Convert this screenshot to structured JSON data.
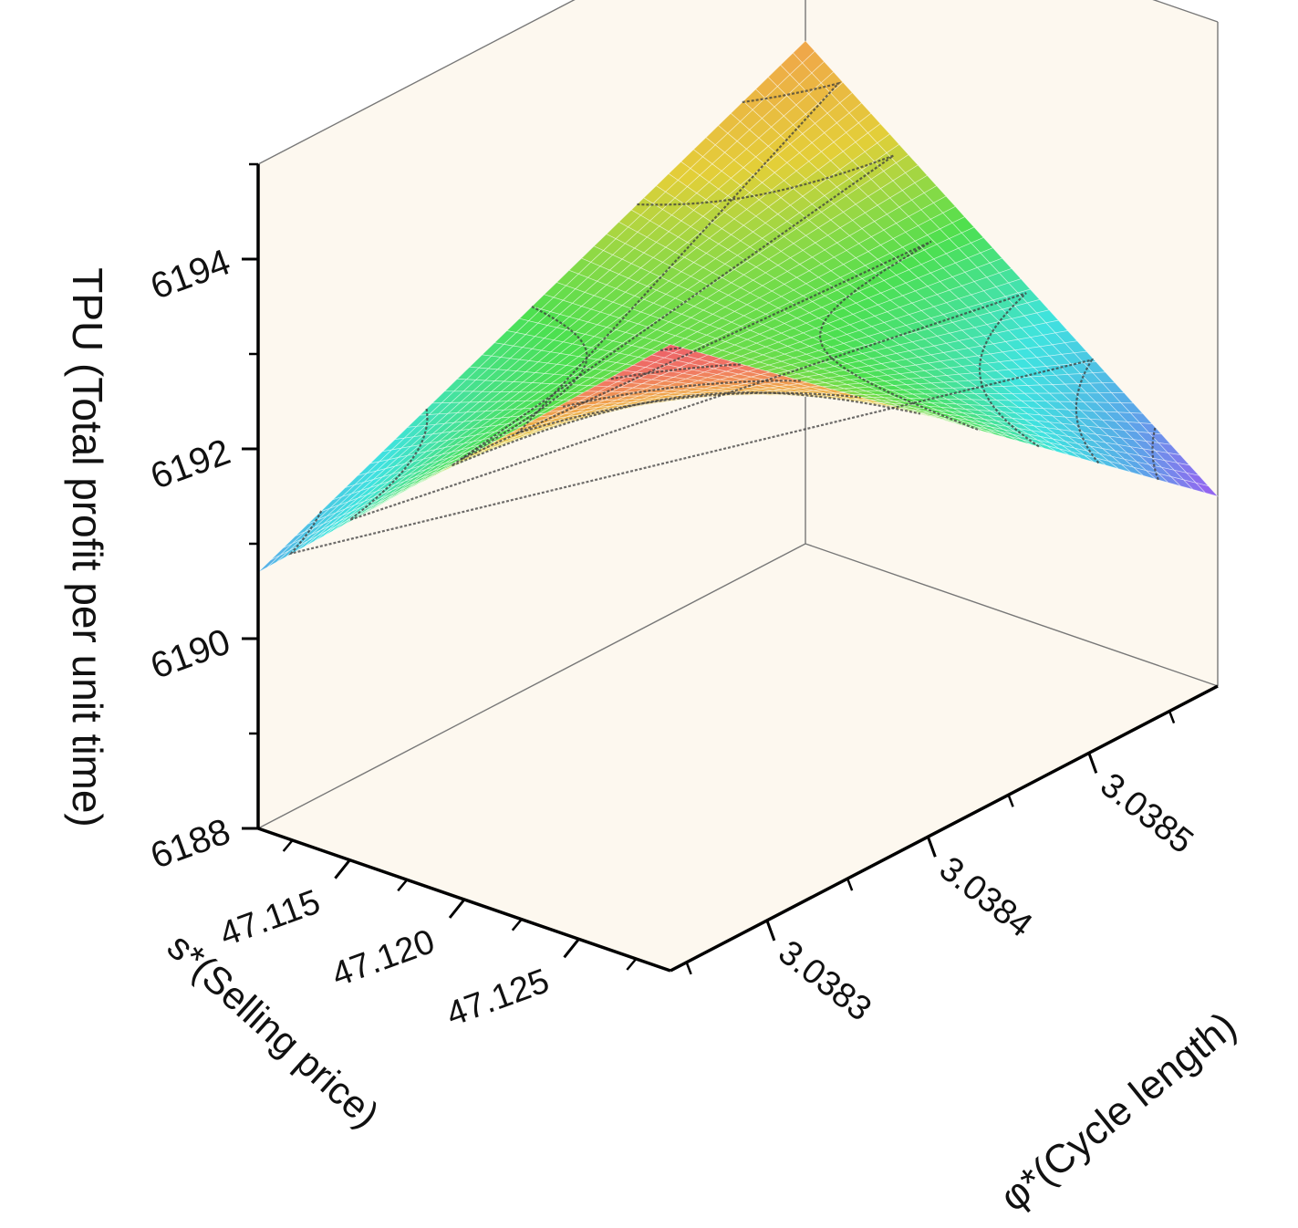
{
  "chart_data": {
    "type": "surface3d",
    "z_axis": {
      "label": "TPU (Total profit per unit time)",
      "ticks": [
        "6188",
        "6190",
        "6192",
        "6194"
      ],
      "range": [
        6188,
        6195
      ]
    },
    "x_axis": {
      "label": "s*(Selling price)",
      "ticks": [
        "47.115",
        "47.120",
        "47.125"
      ],
      "range": [
        47.111,
        47.129
      ]
    },
    "y_axis": {
      "label": "φ*(Cycle length)",
      "ticks": [
        "3.0383",
        "3.0384",
        "3.0385"
      ],
      "range": [
        3.03824,
        3.03858
      ]
    },
    "surface": {
      "s": [
        47.111,
        47.129
      ],
      "phi": [
        3.03824,
        3.03858
      ],
      "corners": {
        "low_s_low_phi": 6190.7,
        "low_s_high_phi": 6193.3,
        "high_s_low_phi": 6194.6,
        "high_s_high_phi": 6190.0
      }
    },
    "colormap": [
      "#9b5cf0",
      "#5aa7e8",
      "#3fe3df",
      "#4ce04f",
      "#e3cf38",
      "#f0a54a",
      "#f07763",
      "#ec6068"
    ],
    "grid": true,
    "contour_lines": true,
    "background": "#fdf8ef"
  }
}
